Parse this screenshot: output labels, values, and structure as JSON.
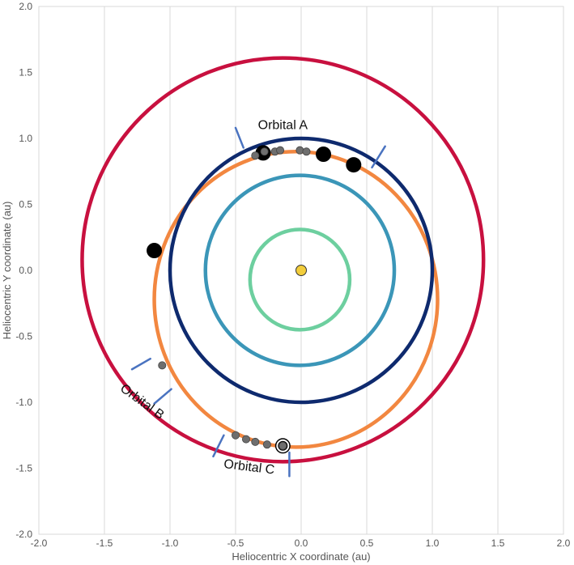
{
  "chart_data": {
    "type": "scatter",
    "title": "",
    "xlabel": "Heliocentric X coordinate (au)",
    "ylabel": "Heliocentric Y coordinate (au)",
    "xlim": [
      -2.0,
      2.0
    ],
    "ylim": [
      -2.0,
      2.0
    ],
    "x_ticks": [
      "-2.0",
      "-1.5",
      "-1.0",
      "-0.5",
      "0.0",
      "0.5",
      "1.0",
      "1.5",
      "2.0"
    ],
    "y_ticks": [
      "2.0",
      "1.5",
      "1.0",
      "0.5",
      "0.0",
      "-0.5",
      "-1.0",
      "-1.5",
      "-2.0"
    ],
    "grid": "vertical",
    "orbits": [
      {
        "color": "#c8103f",
        "cx": -0.14,
        "cy": 0.08,
        "rx": 1.53,
        "ry": 1.53
      },
      {
        "color": "#3b96b8",
        "cx": -0.01,
        "cy": 0.0,
        "rx": 0.72,
        "ry": 0.72
      },
      {
        "color": "#6dcf9f",
        "cx": -0.01,
        "cy": -0.07,
        "rx": 0.38,
        "ry": 0.38
      },
      {
        "color": "#f28740",
        "cx": -0.04,
        "cy": -0.22,
        "rx": 1.08,
        "ry": 1.12
      },
      {
        "color": "#0e2a6e",
        "cx": 0.0,
        "cy": 0.0,
        "rx": 1.0,
        "ry": 1.0
      }
    ],
    "sun": {
      "x": 0.0,
      "y": 0.0,
      "color": "#f2cd3c"
    },
    "large_points": [
      {
        "x": -0.29,
        "y": 0.89
      },
      {
        "x": 0.17,
        "y": 0.88
      },
      {
        "x": 0.4,
        "y": 0.8
      },
      {
        "x": -1.12,
        "y": 0.15
      },
      {
        "x": -0.14,
        "y": -1.33
      }
    ],
    "small_points": [
      {
        "x": -0.35,
        "y": 0.87
      },
      {
        "x": -0.28,
        "y": 0.9
      },
      {
        "x": -0.2,
        "y": 0.9
      },
      {
        "x": -0.16,
        "y": 0.91
      },
      {
        "x": -0.01,
        "y": 0.91
      },
      {
        "x": 0.04,
        "y": 0.9
      },
      {
        "x": -1.06,
        "y": -0.72
      },
      {
        "x": -0.5,
        "y": -1.25
      },
      {
        "x": -0.42,
        "y": -1.28
      },
      {
        "x": -0.35,
        "y": -1.3
      },
      {
        "x": -0.26,
        "y": -1.32
      },
      {
        "x": -0.14,
        "y": -1.33
      }
    ],
    "ring_point": {
      "x": -0.14,
      "y": -1.33
    },
    "boundary_marks": [
      {
        "x1": -0.5,
        "y1": 1.08,
        "x2": -0.44,
        "y2": 0.93
      },
      {
        "x1": 0.64,
        "y1": 0.94,
        "x2": 0.54,
        "y2": 0.78
      },
      {
        "x1": -1.29,
        "y1": -0.75,
        "x2": -1.15,
        "y2": -0.67
      },
      {
        "x1": -1.12,
        "y1": -1.01,
        "x2": -0.99,
        "y2": -0.9
      },
      {
        "x1": -0.59,
        "y1": -1.25,
        "x2": -0.67,
        "y2": -1.41
      },
      {
        "x1": -0.09,
        "y1": -1.38,
        "x2": -0.09,
        "y2": -1.56
      }
    ],
    "annotations": [
      {
        "text": "Orbital A",
        "x": -0.14,
        "y": 1.07,
        "rotate": 0
      },
      {
        "text": "Orbital B",
        "x": -1.23,
        "y": -1.02,
        "rotate": 36
      },
      {
        "text": "Orbital C",
        "x": -0.4,
        "y": -1.52,
        "rotate": 7
      }
    ]
  }
}
